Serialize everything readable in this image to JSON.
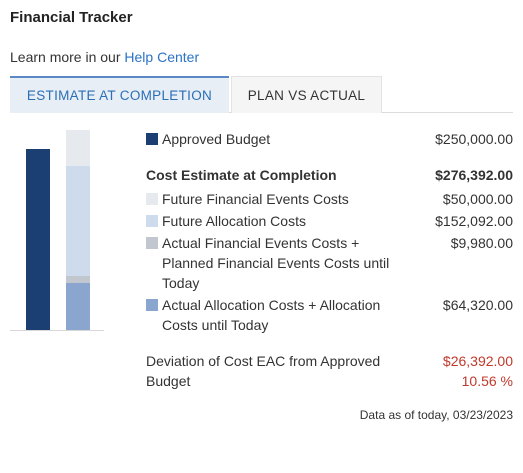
{
  "header": {
    "title": "Financial Tracker"
  },
  "help": {
    "prefix": "Learn more in our ",
    "link_text": "Help Center"
  },
  "tabs": [
    {
      "label": "ESTIMATE AT COMPLETION",
      "active": true
    },
    {
      "label": "PLAN VS ACTUAL",
      "active": false
    }
  ],
  "colors": {
    "approved_budget": "#1b3f73",
    "future_financial_events": "#e6e9ed",
    "future_allocation": "#cddbec",
    "actual_financial_events": "#c2c7cf",
    "actual_allocation": "#8aa6cf",
    "deviation": "#c0392b"
  },
  "chart_data": {
    "type": "bar",
    "categories": [
      "",
      ""
    ],
    "series": [
      {
        "name": "Approved Budget",
        "values": [
          250000,
          0
        ]
      },
      {
        "name": "Actual Allocation Costs + Allocation Costs until Today",
        "values": [
          0,
          64320
        ]
      },
      {
        "name": "Actual Financial Events Costs + Planned Financial Events Costs until Today",
        "values": [
          0,
          9980
        ]
      },
      {
        "name": "Future Allocation Costs",
        "values": [
          0,
          152092
        ]
      },
      {
        "name": "Future Financial Events Costs",
        "values": [
          0,
          50000
        ]
      }
    ],
    "stacked": true,
    "ylim": [
      0,
      276392
    ]
  },
  "legend": {
    "approved": {
      "label": "Approved Budget",
      "value": "$250,000.00"
    },
    "cost_eac": {
      "label": "Cost Estimate at Completion",
      "value": "$276,392.00"
    },
    "future_financial": {
      "label": "Future Financial Events Costs",
      "value": "$50,000.00"
    },
    "future_allocation": {
      "label": "Future Allocation Costs",
      "value": "$152,092.00"
    },
    "actual_financial": {
      "label": "Actual Financial Events Costs + Planned Financial Events Costs until Today",
      "value": "$9,980.00"
    },
    "actual_allocation": {
      "label": "Actual Allocation Costs + Allocation Costs until Today",
      "value": "$64,320.00"
    }
  },
  "deviation": {
    "label": "Deviation of Cost EAC from Approved Budget",
    "amount": "$26,392.00",
    "percent": "10.56 %"
  },
  "as_of": "Data as of today, 03/23/2023"
}
